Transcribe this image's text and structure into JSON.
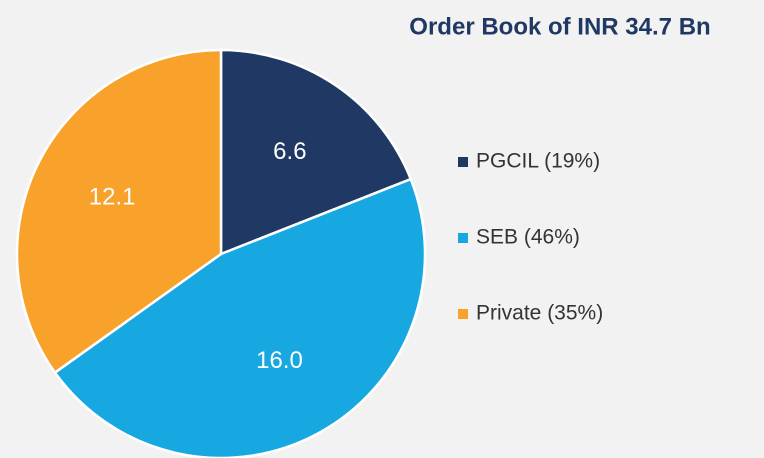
{
  "chart_data": {
    "type": "pie",
    "title": "Order Book of INR 34.7 Bn",
    "categories": [
      "PGCIL (19%)",
      "SEB (46%)",
      "Private (35%)"
    ],
    "values": [
      6.6,
      16.0,
      12.1
    ],
    "value_labels": [
      "6.6",
      "16.0",
      "12.1"
    ],
    "colors": [
      "#1f3864",
      "#17a8e2",
      "#f8a22b"
    ],
    "legend": "right"
  }
}
